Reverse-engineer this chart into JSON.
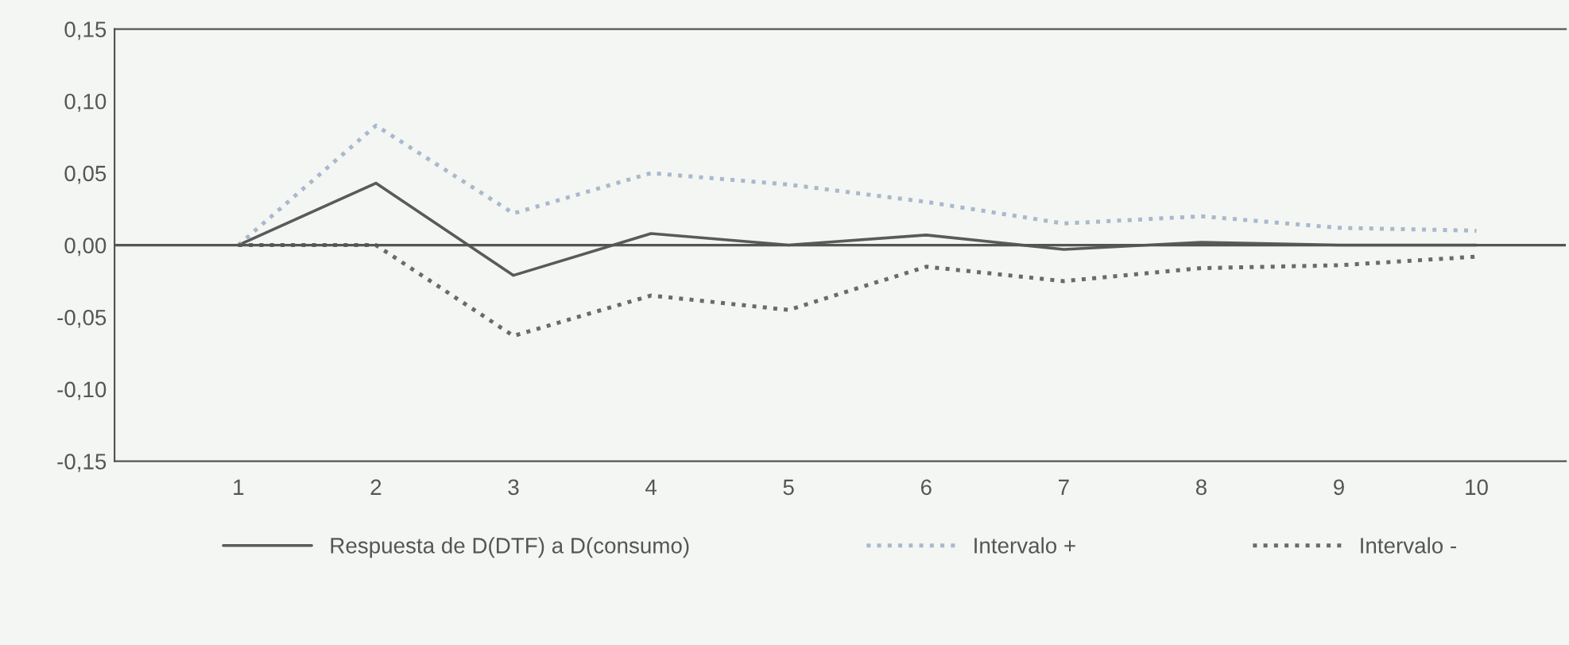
{
  "chart_data": {
    "type": "line",
    "categories": [
      "1",
      "2",
      "3",
      "4",
      "5",
      "6",
      "7",
      "8",
      "9",
      "10"
    ],
    "series": [
      {
        "name": "Respuesta de D(DTF) a D(consumo)",
        "color": "#5a5a5a",
        "line_style": "solid",
        "values": [
          0,
          0.043,
          -0.021,
          0.008,
          0.0,
          0.007,
          -0.003,
          0.002,
          0.0,
          0.0
        ]
      },
      {
        "name": "Intervalo +",
        "color": "#a9b8cc",
        "line_style": "dotted",
        "values": [
          0,
          0.083,
          0.022,
          0.05,
          0.042,
          0.03,
          0.015,
          0.02,
          0.012,
          0.01
        ]
      },
      {
        "name": "Intervalo -",
        "color": "#6a6a6a",
        "line_style": "dotted",
        "values": [
          0,
          0.0,
          -0.063,
          -0.035,
          -0.045,
          -0.015,
          -0.025,
          -0.016,
          -0.014,
          -0.008
        ]
      }
    ],
    "ylim": [
      -0.15,
      0.15
    ],
    "yticks": [
      {
        "value": 0.15,
        "label": "0,15"
      },
      {
        "value": 0.1,
        "label": "0,10"
      },
      {
        "value": 0.05,
        "label": "0,05"
      },
      {
        "value": 0,
        "label": "0,00"
      },
      {
        "value": -0.05,
        "label": "-0,05"
      },
      {
        "value": -0.1,
        "label": "-0,10"
      },
      {
        "value": -0.15,
        "label": "-0,15"
      }
    ],
    "ref_lines": [
      {
        "axis": "y",
        "value": 0,
        "label": null,
        "color": "#555555"
      }
    ],
    "grid": false,
    "legend": "bottom",
    "marker": "none"
  }
}
